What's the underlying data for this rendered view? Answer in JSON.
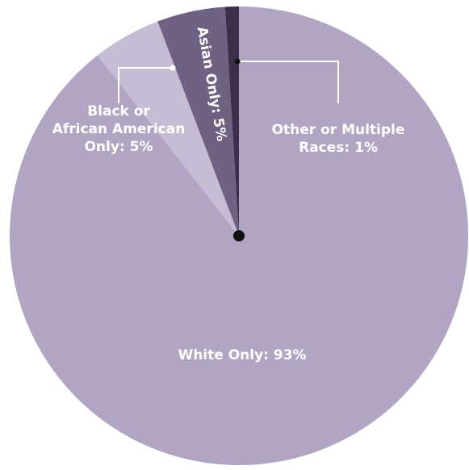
{
  "chart_data": {
    "type": "pie",
    "categories": [
      "White Only",
      "Black or African American Only",
      "Asian Only",
      "Other or Multiple Races"
    ],
    "values": [
      93,
      5,
      5,
      1
    ],
    "labels": [
      [
        "White Only: 93%"
      ],
      [
        "Black or",
        "African American",
        "Only: 5%"
      ],
      [
        "Asian Only: 5%"
      ],
      [
        "Other or Multiple",
        "Races: 1%"
      ]
    ],
    "colors": [
      "#b2a5c4",
      "#c6bcd4",
      "#6f6182",
      "#3b2f4a"
    ]
  }
}
